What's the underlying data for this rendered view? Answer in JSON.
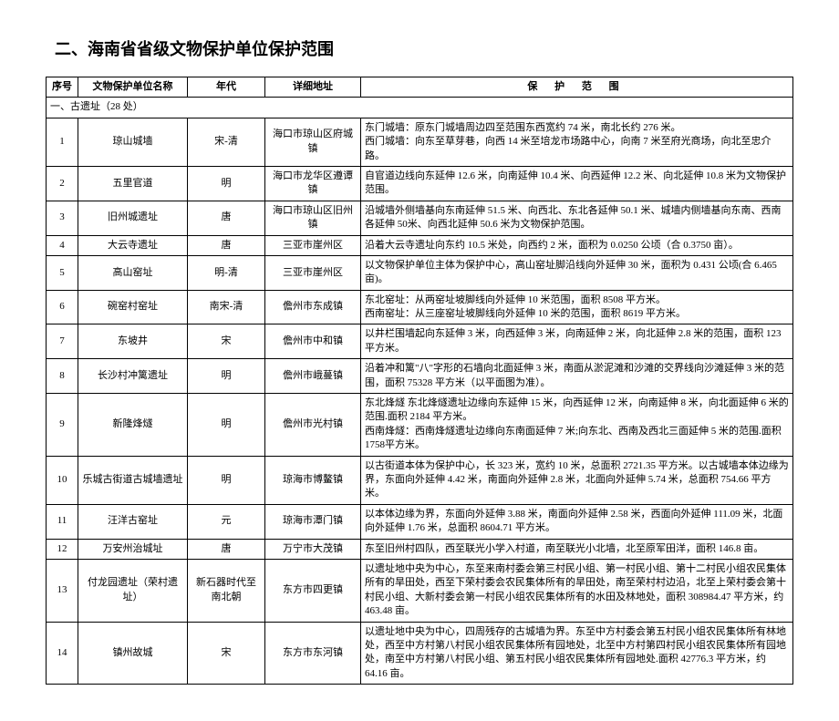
{
  "title": "二、海南省省级文物保护单位保护范围",
  "headers": {
    "seq": "序号",
    "name": "文物保护单位名称",
    "era": "年代",
    "addr": "详细地址",
    "scope": "保 护 范 围"
  },
  "section": "一、古遗址（28 处）",
  "rows": [
    {
      "seq": "1",
      "name": "琼山城墙",
      "era": "宋-清",
      "addr": "海口市琼山区府城镇",
      "scope": "东门城墙：原东门城墙周边四至范围东西宽约 74 米，南北长约 276 米。\n西门城墙：向东至草芽巷，向西 14 米至培龙市场路中心，向南 7 米至府光商场，向北至忠介路。"
    },
    {
      "seq": "2",
      "name": "五里官道",
      "era": "明",
      "addr": "海口市龙华区遵谭镇",
      "scope": "自官道边线向东延伸 12.6 米，向南延伸 10.4 米、向西延伸 12.2 米、向北延伸 10.8 米为文物保护范围。"
    },
    {
      "seq": "3",
      "name": "旧州城遗址",
      "era": "唐",
      "addr": "海口市琼山区旧州镇",
      "scope": "沿城墙外侧墙基向东南延伸 51.5 米、向西北、东北各延伸 50.1 米、城墙内侧墙基向东南、西南各延伸 50米、向西北延伸 50.6 米为文物保护范围。"
    },
    {
      "seq": "4",
      "name": "大云寺遗址",
      "era": "唐",
      "addr": "三亚市崖州区",
      "scope": "沿着大云寺遗址向东约 10.5 米处，向西约 2 米，面积为 0.0250 公顷（合 0.3750 亩）。"
    },
    {
      "seq": "5",
      "name": "高山窑址",
      "era": "明-清",
      "addr": "三亚市崖州区",
      "scope": "以文物保护单位主体为保护中心，高山窑址脚沿线向外延伸 30 米，面积为 0.431 公顷(合 6.465 亩)。"
    },
    {
      "seq": "6",
      "name": "碗窑村窑址",
      "era": "南宋-清",
      "addr": "儋州市东成镇",
      "scope": "东北窑址：从两窑址坡脚线向外延伸 10 米范围，面积 8508 平方米。\n西南窑址：从三座窑址坡脚线向外延伸 10 米的范围，面积 8619 平方米。"
    },
    {
      "seq": "7",
      "name": "东坡井",
      "era": "宋",
      "addr": "儋州市中和镇",
      "scope": "以井栏围墙起向东延伸 3 米，向西延伸 3 米，向南延伸 2 米，向北延伸 2.8 米的范围，面积 123 平方米。"
    },
    {
      "seq": "8",
      "name": "长沙村冲篱遗址",
      "era": "明",
      "addr": "儋州市峨蔓镇",
      "scope": "沿着冲和篱\"八\"字形的石墙向北面延伸 3 米，南面从淤泥滩和沙滩的交界线向沙滩延伸 3 米的范围，面积 75328 平方米（以平面图为准）。"
    },
    {
      "seq": "9",
      "name": "新隆烽燧",
      "era": "明",
      "addr": "儋州市光村镇",
      "scope": "东北烽燧 东北烽燧遗址边缘向东延伸 15 米，向西延伸 12 米，向南延伸 8 米，向北面延伸 6 米的范围.面积 2184 平方米。\n西南烽燧：西南烽燧遗址边缘向东南面延伸 7 米;向东北、西南及西北三面延伸 5 米的范围.面积 1758平方米。"
    },
    {
      "seq": "10",
      "name": "乐城古街道古城墙遗址",
      "era": "明",
      "addr": "琼海市博鳌镇",
      "scope": "以古街道本体为保护中心，长 323 米，宽约 10 米，总面积 2721.35 平方米。以古城墙本体边缘为界，东面向外延伸 4.42 米，南面向外延伸 2.8 米，北面向外延伸 5.74 米，总面积 754.66 平方米。"
    },
    {
      "seq": "11",
      "name": "汪洋古窑址",
      "era": "元",
      "addr": "琼海市潭门镇",
      "scope": "以本体边缘为界，东面向外延伸 3.88 米，南面向外延伸 2.58 米，西面向外延伸 111.09 米，北面向外延伸 1.76 米，总面积 8604.71 平方米。"
    },
    {
      "seq": "12",
      "name": "万安州治城址",
      "era": "唐",
      "addr": "万宁市大茂镇",
      "scope": "东至旧州村四队，西至联光小学入村道，南至联光小北墙，北至原军田洋，面积 146.8 亩。"
    },
    {
      "seq": "13",
      "name": "付龙园遗址（荣村遗址）",
      "era": "新石器时代至南北朝",
      "addr": "东方市四更镇",
      "scope": "以遗址地中央为中心，东至来南村委会第三村民小组、第一村民小组、第十二村民小组农民集体所有的旱田处，西至下荣村委会农民集体所有的旱田处，南至荣村村边沿，北至上荣村委会第十村民小组、大新村委会第一村民小组农民集体所有的水田及林地处，面积 308984.47 平方米，约 463.48 亩。"
    },
    {
      "seq": "14",
      "name": "镇州故城",
      "era": "宋",
      "addr": "东方市东河镇",
      "scope": "以遗址地中央为中心，四周残存的古城墙为界。东至中方村委会第五村民小组农民集体所有林地处，西至中方村第八村民小组农民集体所有园地处，北至中方村第四村民小组农民集体所有园地处，南至中方村第八村民小组、第五村民小组农民集体所有园地处.面积 42776.3 平方米，约 64.16 亩。"
    }
  ]
}
